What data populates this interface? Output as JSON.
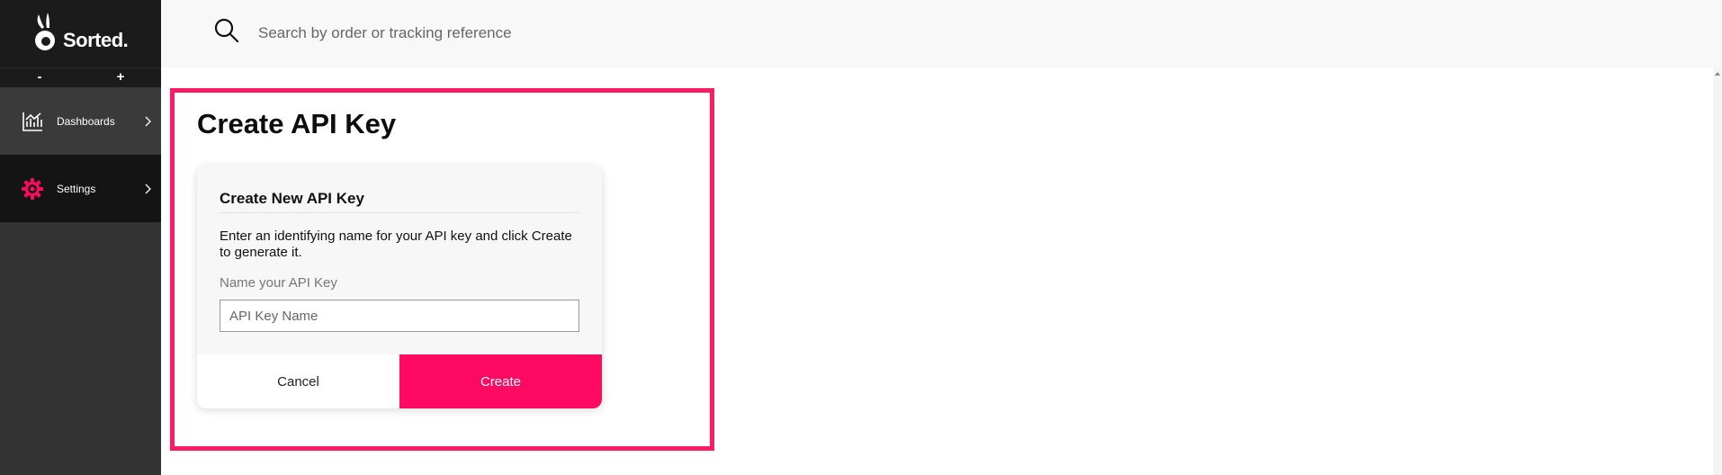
{
  "brand": {
    "name": "Sorted.",
    "accent_color": "#ff0a62",
    "logo_icon": "sorted-rabbit-logo"
  },
  "sidebar": {
    "zoom_out_label": "-",
    "zoom_in_label": "+",
    "items": [
      {
        "label": "Dashboards",
        "icon": "bar-chart-icon",
        "active": false
      },
      {
        "label": "Settings",
        "icon": "gear-icon",
        "active": true
      }
    ]
  },
  "topbar": {
    "search_placeholder": "Search by order or tracking reference",
    "search_icon": "search-icon"
  },
  "page": {
    "title": "Create API Key"
  },
  "card": {
    "title": "Create New API Key",
    "description": "Enter an identifying name for your API key and click Create to generate it.",
    "field_label": "Name your API Key",
    "input_placeholder": "API Key Name",
    "input_value": "",
    "cancel_label": "Cancel",
    "create_label": "Create"
  }
}
